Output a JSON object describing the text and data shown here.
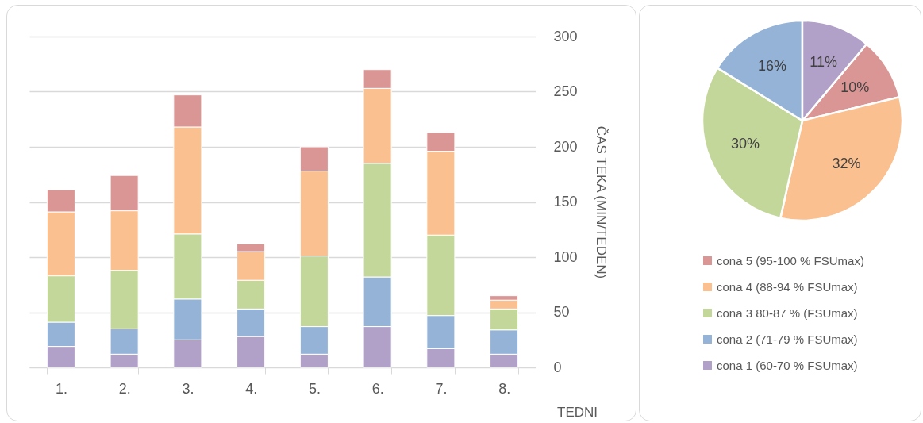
{
  "chart_data": [
    {
      "type": "bar",
      "stacked": true,
      "ylabel": "ČAS TEKA (MIN/TEDEN)",
      "xlabel": "TEDNI",
      "categories": [
        "1.",
        "2.",
        "3.",
        "4.",
        "5.",
        "6.",
        "7.",
        "8."
      ],
      "series": [
        {
          "color": "#b1a0c7",
          "values": [
            19,
            12,
            25,
            28,
            12,
            37,
            17,
            12
          ]
        },
        {
          "color": "#95b3d7",
          "values": [
            22,
            23,
            37,
            25,
            25,
            45,
            30,
            22
          ]
        },
        {
          "color": "#c4d79b",
          "values": [
            42,
            53,
            59,
            26,
            64,
            103,
            73,
            19
          ]
        },
        {
          "color": "#fac090",
          "values": [
            58,
            54,
            97,
            26,
            77,
            68,
            76,
            8
          ]
        },
        {
          "color": "#da9694",
          "values": [
            20,
            32,
            29,
            7,
            22,
            17,
            17,
            4
          ]
        }
      ],
      "ylim": [
        0,
        300
      ],
      "yticks": [
        0,
        50,
        100,
        150,
        200,
        250,
        300
      ],
      "grid": "y"
    },
    {
      "type": "pie",
      "legend": "bottom",
      "categories": [
        "cona 5 (95-100 % FSUmax)",
        "cona 4 (88-94 % FSUmax)",
        "cona 3 80-87 % (FSUmax)",
        "cona 2 (71-79 % FSUmax)",
        "cona 1 (60-70 % FSUmax)"
      ],
      "values": [
        10,
        32,
        30,
        16,
        11
      ],
      "colors": [
        "#da9694",
        "#fac090",
        "#c4d79b",
        "#95b3d7",
        "#b1a0c7"
      ],
      "value_labels": [
        "10%",
        "32%",
        "30%",
        "16%",
        "11%"
      ]
    }
  ]
}
